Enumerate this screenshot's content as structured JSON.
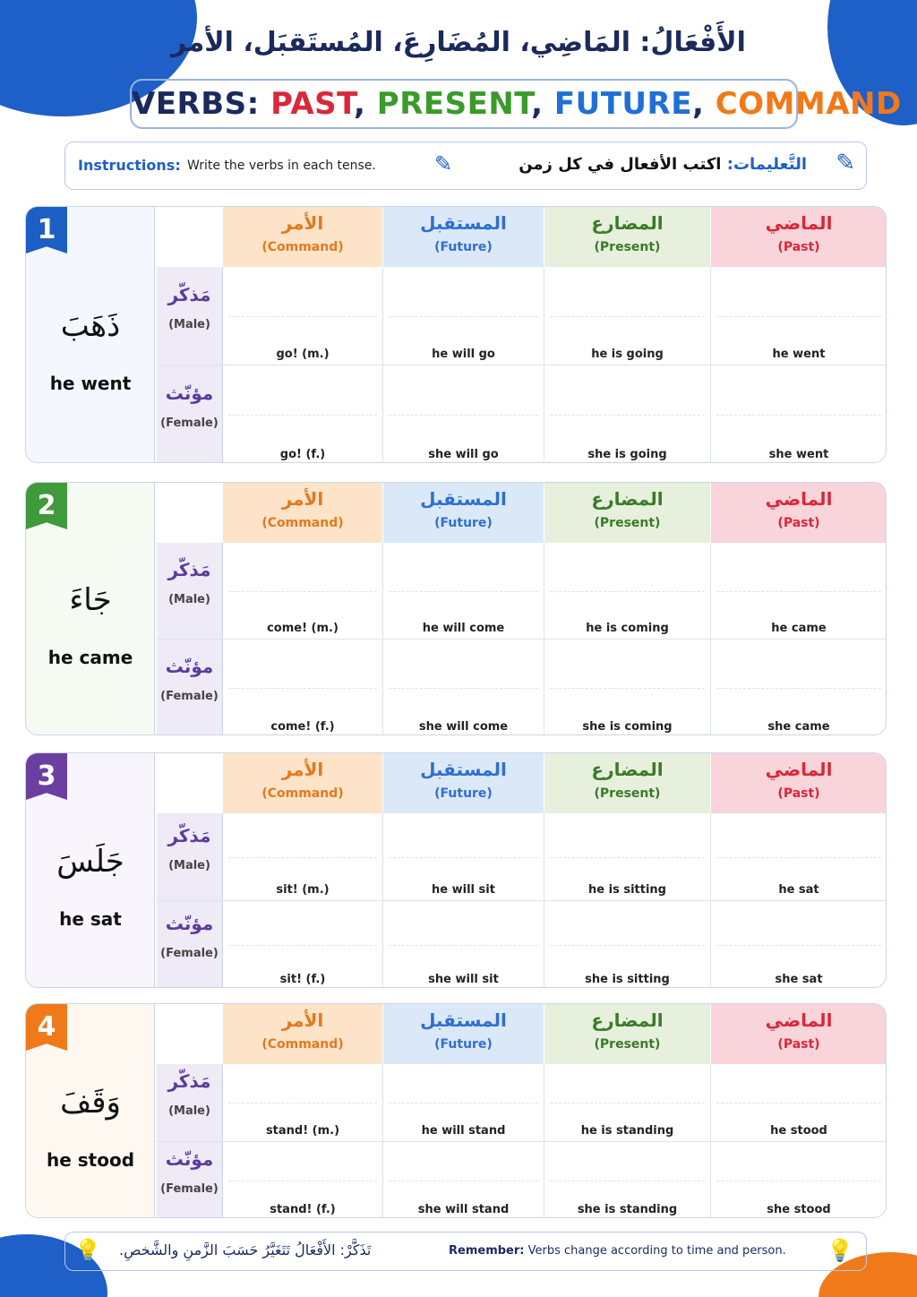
{
  "header": {
    "title_ar": "الأَفْعَالُ: المَاضِي، المُضَارِعَ، المُستَقبَل، الأمر",
    "title_en_parts": [
      "VERBS: ",
      "PAST",
      ", ",
      "PRESENT",
      ", ",
      "FUTURE",
      ", ",
      "COMMAND"
    ]
  },
  "instructions": {
    "label_en": "Instructions:",
    "text_en": "Write the verbs in each tense.",
    "label_ar": "التَّعليمات:",
    "text_ar": "اكتب الأفعال في كل زمن"
  },
  "columns": [
    {
      "ar": "الأمر",
      "en": "(Command)"
    },
    {
      "ar": "المستقبل",
      "en": "(Future)"
    },
    {
      "ar": "المضارع",
      "en": "(Present)"
    },
    {
      "ar": "الماضي",
      "en": "(Past)"
    }
  ],
  "genders": [
    {
      "ar": "مَذكّر",
      "en": "(Male)"
    },
    {
      "ar": "مؤنّث",
      "en": "(Female)"
    }
  ],
  "blocks": [
    {
      "number": 1,
      "verb_ar": "ذَهَبَ",
      "verb_en": "he went",
      "rows": [
        [
          "go! (m.)",
          "he will go",
          "he is going",
          "he went"
        ],
        [
          "go! (f.)",
          "she will go",
          "she is going",
          "she went"
        ]
      ]
    },
    {
      "number": 2,
      "verb_ar": "جَاءَ",
      "verb_en": "he came",
      "rows": [
        [
          "come! (m.)",
          "he will come",
          "he is coming",
          "he came"
        ],
        [
          "come! (f.)",
          "she will come",
          "she is coming",
          "she came"
        ]
      ]
    },
    {
      "number": 3,
      "verb_ar": "جَلَسَ",
      "verb_en": "he sat",
      "rows": [
        [
          "sit! (m.)",
          "he will sit",
          "he is sitting",
          "he sat"
        ],
        [
          "sit! (f.)",
          "she will sit",
          "she is sitting",
          "she sat"
        ]
      ]
    },
    {
      "number": 4,
      "verb_ar": "وَقَفَ",
      "verb_en": "he stood",
      "rows": [
        [
          "stand! (m.)",
          "he will stand",
          "he is standing",
          "he stood"
        ],
        [
          "stand! (f.)",
          "she will stand",
          "she is standing",
          "she stood"
        ]
      ]
    }
  ],
  "footer": {
    "text_ar": "تَذَكَّرْ: الأَفْعَالُ تَتَغَيَّرُ حَسَبَ الزَّمنِ والشَّخصِ.",
    "label_en": "Remember:",
    "text_en": "Verbs change according to time and person."
  }
}
